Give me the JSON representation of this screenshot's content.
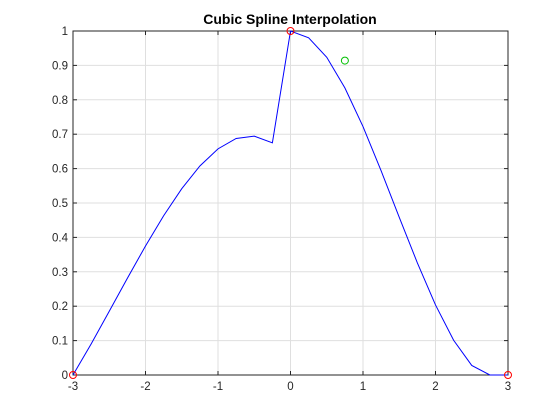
{
  "chart_data": {
    "type": "line",
    "title": "Cubic Spline Interpolation",
    "xlabel": "",
    "ylabel": "",
    "xlim": [
      -3,
      3
    ],
    "ylim": [
      0,
      1
    ],
    "xticks": [
      -3,
      -2,
      -1,
      0,
      1,
      2,
      3
    ],
    "yticks": [
      0,
      0.1,
      0.2,
      0.3,
      0.4,
      0.5,
      0.6,
      0.7,
      0.8,
      0.9,
      1
    ],
    "xtick_labels": [
      "-3",
      "-2",
      "-1",
      "0",
      "1",
      "2",
      "3"
    ],
    "ytick_labels": [
      "0",
      "0.1",
      "0.2",
      "0.3",
      "0.4",
      "0.5",
      "0.6",
      "0.7",
      "0.8",
      "0.9",
      "1"
    ],
    "grid": true,
    "series": [
      {
        "kind": "line",
        "color": "#0000ff",
        "x": [
          -3,
          -2.75,
          -2.5,
          -2.25,
          -2,
          -1.75,
          -1.5,
          -1.25,
          -1,
          -0.75,
          -0.5,
          -0.25,
          0,
          0.25,
          0.5,
          0.75,
          1,
          1.25,
          1.5,
          1.75,
          2,
          2.25,
          2.5,
          2.75,
          3
        ],
        "y": [
          0,
          0.0903,
          0.1852,
          0.2813,
          0.375,
          0.463,
          0.5417,
          0.6076,
          0.6574,
          0.6875,
          0.6944,
          0.6748,
          1.0,
          0.9803,
          0.9236,
          0.8347,
          0.7222,
          0.5936,
          0.4583,
          0.3258,
          0.2037,
          0.101,
          0.0278,
          0.0001,
          0
        ]
      },
      {
        "kind": "markers",
        "marker": "circle",
        "color": "#ff0000",
        "x": [
          -3,
          0,
          3
        ],
        "y": [
          0,
          1,
          0
        ]
      },
      {
        "kind": "markers",
        "marker": "circle",
        "color": "#00c000",
        "x": [
          0.75
        ],
        "y": [
          0.914
        ]
      }
    ]
  }
}
